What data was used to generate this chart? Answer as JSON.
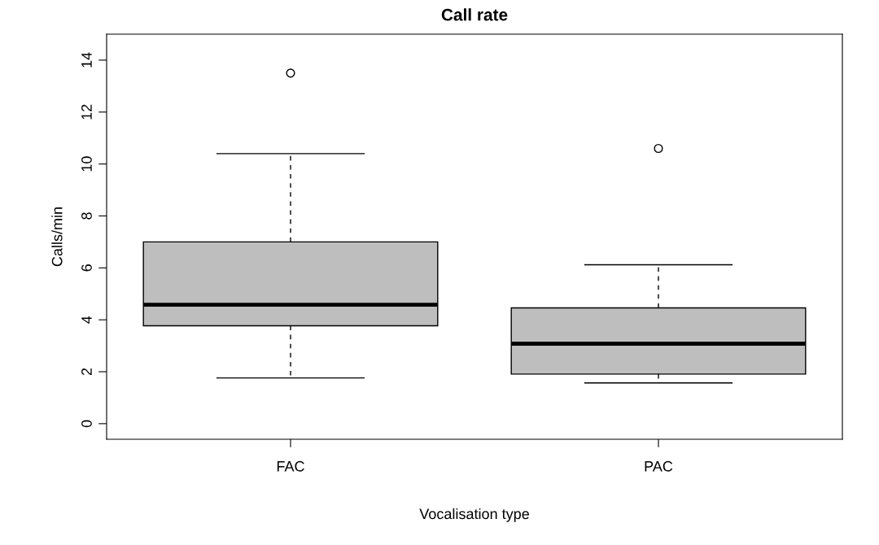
{
  "chart_data": {
    "type": "box",
    "title": "Call rate",
    "xlabel": "Vocalisation type",
    "ylabel": "Calls/min",
    "categories": [
      "FAC",
      "PAC"
    ],
    "boxes": [
      {
        "low": 1.76,
        "q1": 3.77,
        "median": 4.58,
        "q3": 7.0,
        "high": 10.4,
        "outliers": [
          13.5
        ]
      },
      {
        "low": 1.57,
        "q1": 1.91,
        "median": 3.08,
        "q3": 4.46,
        "high": 6.12,
        "outliers": [
          10.6
        ]
      }
    ],
    "color": "#bebebe",
    "ylim": [
      -0.6,
      15.0
    ],
    "yticks": [
      0,
      2,
      4,
      6,
      8,
      10,
      12,
      14
    ],
    "grid": false
  }
}
